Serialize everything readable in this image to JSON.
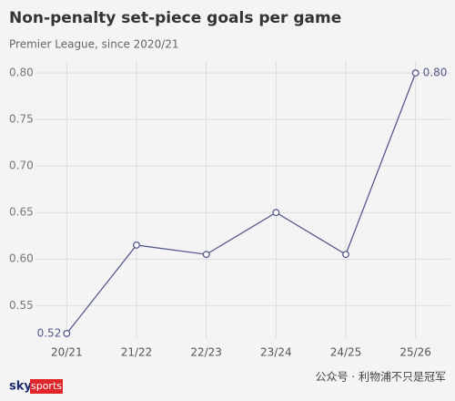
{
  "chart_data": {
    "type": "line",
    "title": "Non-penalty set-piece goals per game",
    "subtitle": "Premier League, since 2020/21",
    "categories": [
      "20/21",
      "21/22",
      "22/23",
      "23/24",
      "24/25",
      "25/26"
    ],
    "values": [
      0.52,
      0.615,
      0.605,
      0.65,
      0.605,
      0.8
    ],
    "value_labels": [
      "0.52",
      null,
      null,
      null,
      null,
      "0.80"
    ],
    "color": "#555a8c",
    "ylim": [
      0.515,
      0.805
    ],
    "yticks": [
      0.55,
      {
        "value": 0.6,
        "label": "0.60"
      },
      0.65,
      {
        "value": 0.7,
        "label": "0.70"
      },
      0.75,
      {
        "value": 0.8,
        "label": "0.80"
      }
    ],
    "grid": true
  },
  "footer": {
    "brand": "sky",
    "brand_box": "sports",
    "watermark": "公众号 · 利物浦不只是冠军"
  }
}
